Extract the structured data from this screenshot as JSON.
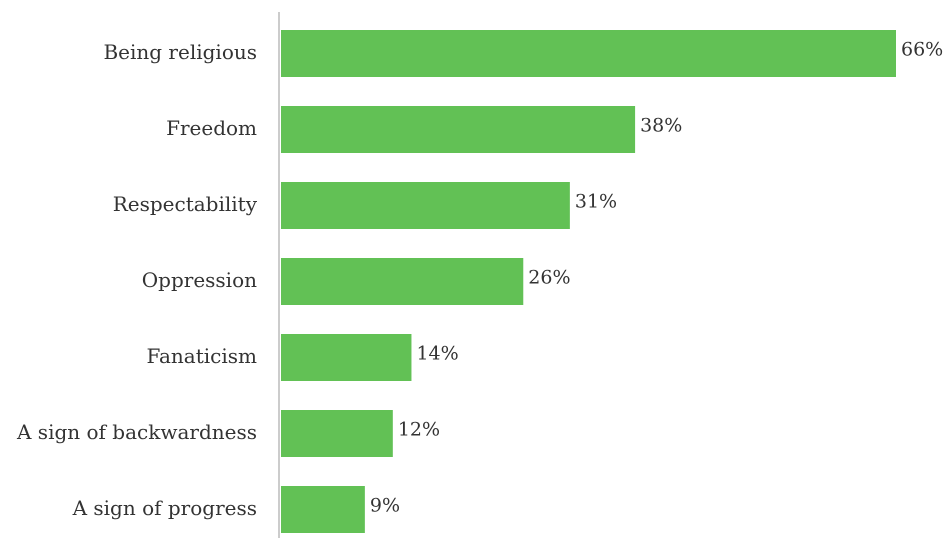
{
  "chart_data": {
    "type": "bar",
    "orientation": "horizontal",
    "categories": [
      "Being religious",
      "Freedom",
      "Respectability",
      "Oppression",
      "Fanaticism",
      "A sign of backwardness",
      "A sign of progress"
    ],
    "values": [
      66,
      38,
      31,
      26,
      14,
      12,
      9
    ],
    "value_labels": [
      "66%",
      "38%",
      "31%",
      "26%",
      "14%",
      "12%",
      "9%"
    ],
    "unit": "%",
    "xlim": [
      0,
      66
    ],
    "grid": false,
    "legend": "none",
    "bar_color": "#62c155",
    "axis_color": "#cccccc",
    "text_color": "#333333"
  }
}
